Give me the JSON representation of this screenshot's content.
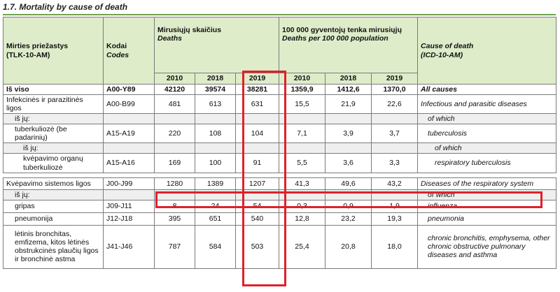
{
  "title": "1.7. Mortality by cause of death",
  "header": {
    "cause_lt": "Mirties priežastys",
    "cause_lt_code": "(TLK-10-AM)",
    "codes_lt": "Kodai",
    "codes_en": "Codes",
    "deaths_lt": "Mirusiųjų skaičius",
    "deaths_en": "Deaths",
    "rate_lt": "100 000 gyventojų tenka mirusiųjų",
    "rate_en": "Deaths per 100 000 population",
    "cause_en": "Cause of death",
    "cause_en_code": "(ICD-10-AM)",
    "years": [
      "2010",
      "2018",
      "2019"
    ]
  },
  "rows": [
    {
      "lt": "Iš viso",
      "code": "A00-Y89",
      "d2010": "42120",
      "d2018": "39574",
      "d2019": "38281",
      "r2010": "1359,9",
      "r2018": "1412,6",
      "r2019": "1370,0",
      "en": "All causes"
    },
    {
      "lt": "Infekcinės ir parazitinės ligos",
      "code": "A00-B99",
      "d2010": "481",
      "d2018": "613",
      "d2019": "631",
      "r2010": "15,5",
      "r2018": "21,9",
      "r2019": "22,6",
      "en": "Infectious and parasitic diseases"
    },
    {
      "lt": "iš jų:",
      "code": "",
      "d2010": "",
      "d2018": "",
      "d2019": "",
      "r2010": "",
      "r2018": "",
      "r2019": "",
      "en": "of which"
    },
    {
      "lt": "tuberkuliozė (be padarinių)",
      "code": "A15-A19",
      "d2010": "220",
      "d2018": "108",
      "d2019": "104",
      "r2010": "7,1",
      "r2018": "3,9",
      "r2019": "3,7",
      "en": "tuberculosis"
    },
    {
      "lt": "iš jų:",
      "code": "",
      "d2010": "",
      "d2018": "",
      "d2019": "",
      "r2010": "",
      "r2018": "",
      "r2019": "",
      "en": "of which"
    },
    {
      "lt": "kvėpavimo organų tuberkuliozė",
      "code": "A15-A16",
      "d2010": "169",
      "d2018": "100",
      "d2019": "91",
      "r2010": "5,5",
      "r2018": "3,6",
      "r2019": "3,3",
      "en": "respiratory tuberculosis"
    },
    {
      "lt": "Kvėpavimo sistemos ligos",
      "code": "J00-J99",
      "d2010": "1280",
      "d2018": "1389",
      "d2019": "1207",
      "r2010": "41,3",
      "r2018": "49,6",
      "r2019": "43,2",
      "en": "Diseases of the respiratory system"
    },
    {
      "lt": "iš jų:",
      "code": "",
      "d2010": "",
      "d2018": "",
      "d2019": "",
      "r2010": "",
      "r2018": "",
      "r2019": "",
      "en": "of which"
    },
    {
      "lt": "gripas",
      "code": "J09-J11",
      "d2010": "8",
      "d2018": "24",
      "d2019": "54",
      "r2010": "0,3",
      "r2018": "0,9",
      "r2019": "1,9",
      "en": "influenza"
    },
    {
      "lt": "pneumonija",
      "code": "J12-J18",
      "d2010": "395",
      "d2018": "651",
      "d2019": "540",
      "r2010": "12,8",
      "r2018": "23,2",
      "r2019": "19,3",
      "en": "pneumonia"
    },
    {
      "lt": "lėtinis bronchitas, emfizema, kitos lėtinės obstrukcinės plaučių ligos ir bronchinė astma",
      "code": "J41-J46",
      "d2010": "787",
      "d2018": "584",
      "d2019": "503",
      "r2010": "25,4",
      "r2018": "20,8",
      "r2019": "18,0",
      "en": "chronic bronchitis, emphysema, other chronic obstructive pulmonary diseases and asthma"
    }
  ],
  "highlight_color": "#e0202a",
  "header_color": "#deecc9",
  "rule_color": "#6ea24a"
}
